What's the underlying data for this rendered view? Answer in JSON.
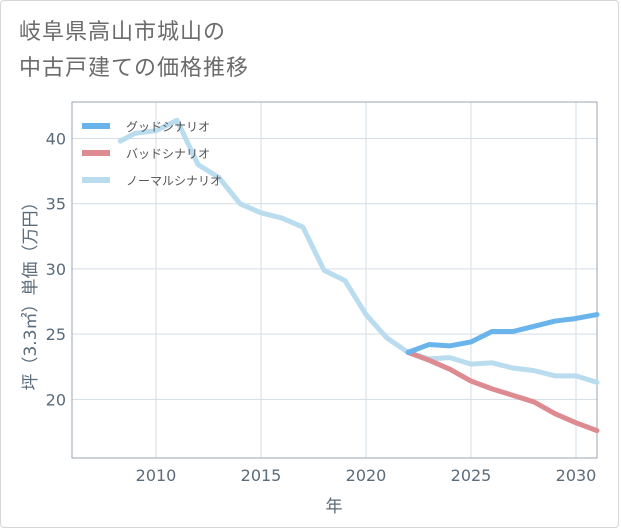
{
  "title": {
    "line1": "岐阜県高山市城山の",
    "line2": "中古戸建ての価格推移"
  },
  "chart_data": {
    "type": "line",
    "xlabel": "年",
    "ylabel": "坪（3.3㎡）単価（万円）",
    "xlim": [
      2006,
      2031
    ],
    "ylim": [
      15.5,
      42.8
    ],
    "x_ticks": [
      2010,
      2015,
      2020,
      2025,
      2030
    ],
    "y_ticks": [
      20,
      25,
      30,
      35,
      40
    ],
    "grid": true,
    "legend_position": "top-left",
    "series": [
      {
        "name": "グッドシナリオ",
        "color": "#6ab4ec",
        "points": [
          [
            2022,
            23.6
          ],
          [
            2023,
            24.2
          ],
          [
            2024,
            24.1
          ],
          [
            2025,
            24.4
          ],
          [
            2026,
            25.2
          ],
          [
            2027,
            25.2
          ],
          [
            2028,
            25.6
          ],
          [
            2029,
            26.0
          ],
          [
            2030,
            26.2
          ],
          [
            2031,
            26.5
          ]
        ]
      },
      {
        "name": "バッドシナリオ",
        "color": "#dd8a91",
        "points": [
          [
            2022,
            23.6
          ],
          [
            2023,
            23.0
          ],
          [
            2024,
            22.3
          ],
          [
            2025,
            21.4
          ],
          [
            2026,
            20.8
          ],
          [
            2027,
            20.3
          ],
          [
            2028,
            19.8
          ],
          [
            2029,
            18.9
          ],
          [
            2030,
            18.2
          ],
          [
            2031,
            17.6
          ]
        ]
      },
      {
        "name": "ノーマルシナリオ",
        "color": "#b9dcee",
        "points": [
          [
            2008.3,
            39.8
          ],
          [
            2009,
            40.4
          ],
          [
            2010,
            40.6
          ],
          [
            2011,
            41.4
          ],
          [
            2012,
            38.0
          ],
          [
            2013,
            37.0
          ],
          [
            2014,
            35.0
          ],
          [
            2015,
            34.3
          ],
          [
            2016,
            33.9
          ],
          [
            2017,
            33.2
          ],
          [
            2018,
            29.9
          ],
          [
            2019,
            29.1
          ],
          [
            2020,
            26.5
          ],
          [
            2021,
            24.7
          ],
          [
            2022,
            23.6
          ],
          [
            2023,
            23.1
          ],
          [
            2024,
            23.2
          ],
          [
            2025,
            22.7
          ],
          [
            2026,
            22.8
          ],
          [
            2027,
            22.4
          ],
          [
            2028,
            22.2
          ],
          [
            2029,
            21.8
          ],
          [
            2030,
            21.8
          ],
          [
            2031,
            21.3
          ]
        ]
      }
    ]
  }
}
